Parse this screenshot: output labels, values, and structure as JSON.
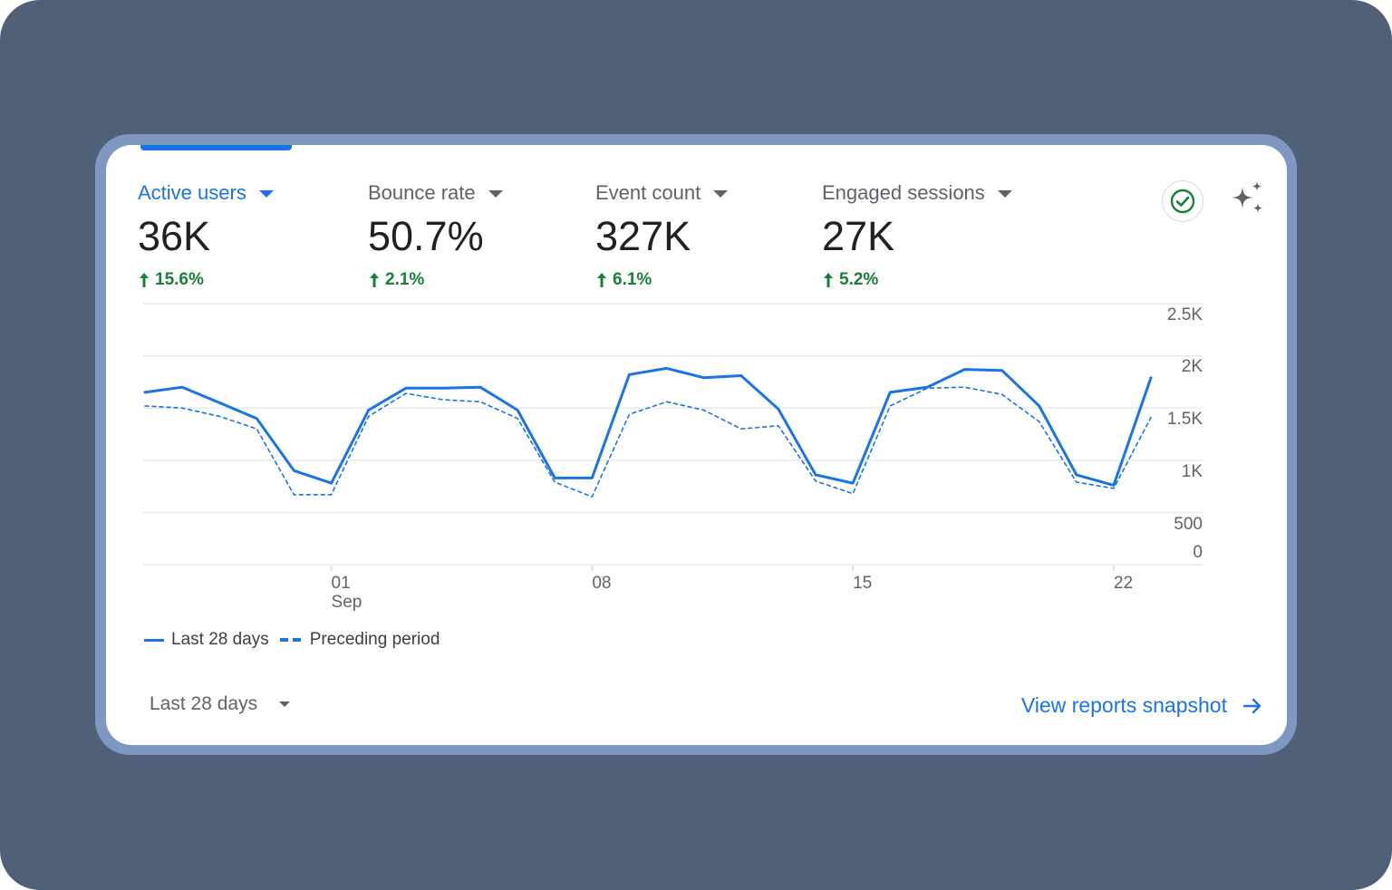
{
  "colors": {
    "accent": "#1a73e8",
    "positive": "#188038",
    "text_primary": "#202124",
    "text_secondary": "#5f6368"
  },
  "metrics": [
    {
      "label": "Active users",
      "value": "36K",
      "change": "15.6%",
      "active": true
    },
    {
      "label": "Bounce rate",
      "value": "50.7%",
      "change": "2.1%",
      "active": false
    },
    {
      "label": "Event count",
      "value": "327K",
      "change": "6.1%",
      "active": false
    },
    {
      "label": "Engaged sessions",
      "value": "27K",
      "change": "5.2%",
      "active": false
    }
  ],
  "toolbar": {
    "status_icon": "check-circle-icon",
    "insights_icon": "sparkle-icon"
  },
  "chart_data": {
    "type": "line",
    "x": [
      "Aug 27",
      "Aug 28",
      "Aug 29",
      "Aug 30",
      "Aug 31",
      "Sep 1",
      "Sep 2",
      "Sep 3",
      "Sep 4",
      "Sep 5",
      "Sep 6",
      "Sep 7",
      "Sep 8",
      "Sep 9",
      "Sep 10",
      "Sep 11",
      "Sep 12",
      "Sep 13",
      "Sep 14",
      "Sep 15",
      "Sep 16",
      "Sep 17",
      "Sep 18",
      "Sep 19",
      "Sep 20",
      "Sep 21",
      "Sep 22",
      "Sep 23"
    ],
    "x_tick_labels": [
      {
        "x": "Sep 1",
        "label": "01",
        "sublabel": "Sep"
      },
      {
        "x": "Sep 8",
        "label": "08",
        "sublabel": ""
      },
      {
        "x": "Sep 15",
        "label": "15",
        "sublabel": ""
      },
      {
        "x": "Sep 22",
        "label": "22",
        "sublabel": ""
      }
    ],
    "y_tick_labels": [
      "2.5K",
      "2K",
      "1.5K",
      "1K",
      "500",
      "0"
    ],
    "ylim": [
      0,
      2500
    ],
    "grid": true,
    "legend_position": "bottom-left",
    "series": [
      {
        "name": "Last 28 days",
        "style": "solid",
        "values": [
          1650,
          1700,
          1550,
          1400,
          900,
          780,
          1480,
          1690,
          1690,
          1700,
          1480,
          830,
          830,
          1820,
          1880,
          1790,
          1810,
          1490,
          860,
          780,
          1650,
          1700,
          1870,
          1860,
          1520,
          860,
          760,
          1790
        ]
      },
      {
        "name": "Preceding period",
        "style": "dashed",
        "values": [
          1520,
          1500,
          1420,
          1300,
          670,
          670,
          1420,
          1640,
          1580,
          1560,
          1400,
          790,
          650,
          1440,
          1560,
          1480,
          1300,
          1330,
          800,
          680,
          1520,
          1690,
          1700,
          1630,
          1370,
          790,
          730,
          1410
        ]
      }
    ]
  },
  "footer": {
    "range_label": "Last 28 days",
    "view_link": "View reports snapshot"
  }
}
